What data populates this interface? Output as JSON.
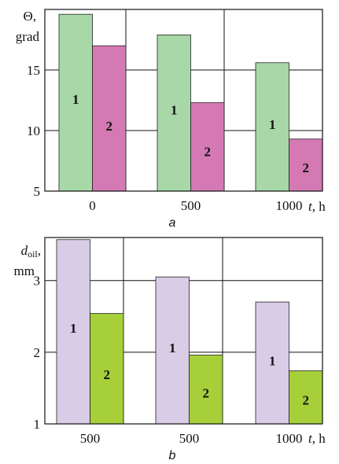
{
  "chart_data": [
    {
      "type": "bar",
      "panel": "a",
      "ylabel_line1": "Θ,",
      "ylabel_line2": "grad",
      "xlabel_var": "t",
      "xlabel_unit": ", h",
      "categories": [
        "0",
        "500",
        "1000"
      ],
      "series": [
        {
          "name": "1",
          "values": [
            19.6,
            17.9,
            15.6
          ],
          "color": "#a8d8a8"
        },
        {
          "name": "2",
          "values": [
            17.0,
            12.3,
            9.3
          ],
          "color": "#d479b4"
        }
      ],
      "ylim": [
        5,
        20
      ],
      "yticks": [
        5,
        10,
        15
      ],
      "grid": "horizontal"
    },
    {
      "type": "bar",
      "panel": "b",
      "ylabel_var": "d",
      "ylabel_sub": "oil",
      "ylabel_comma": ",",
      "ylabel_line2": "mm",
      "xlabel_var": "t",
      "xlabel_unit": ", h",
      "categories": [
        "500",
        "500",
        "1000"
      ],
      "series": [
        {
          "name": "1",
          "values": [
            3.57,
            3.05,
            2.7
          ],
          "color": "#d8cce6"
        },
        {
          "name": "2",
          "values": [
            2.54,
            1.96,
            1.74
          ],
          "color": "#a6cf3a"
        }
      ],
      "ylim": [
        1,
        3.6
      ],
      "yticks": [
        1,
        2,
        3
      ],
      "grid": "horizontal"
    }
  ]
}
